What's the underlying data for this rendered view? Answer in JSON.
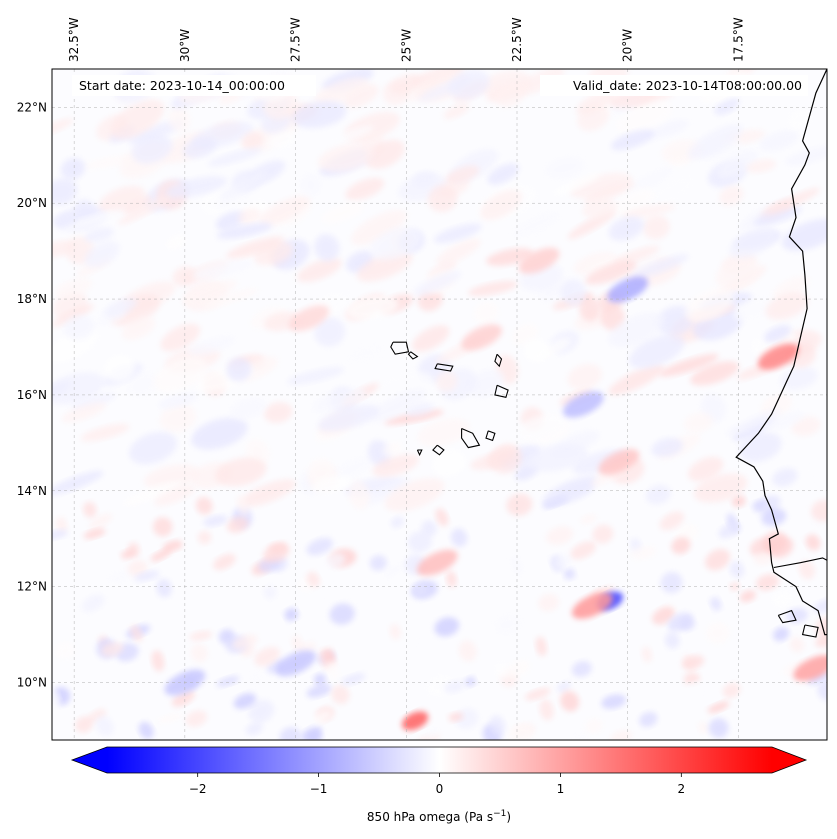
{
  "map": {
    "projection": "plate-carree",
    "extent": {
      "lon_min": -33.0,
      "lon_max": -15.5,
      "lat_min": 8.8,
      "lat_max": 22.8
    },
    "gridlines": "dashed",
    "start_label": "Start date: 2023-10-14_00:00:00",
    "valid_label": "Valid_date: 2023-10-14T08:00:00.00",
    "lon_ticks": [
      {
        "value": -32.5,
        "label": "32.5°W"
      },
      {
        "value": -30.0,
        "label": "30°W"
      },
      {
        "value": -27.5,
        "label": "27.5°W"
      },
      {
        "value": -25.0,
        "label": "25°W"
      },
      {
        "value": -22.5,
        "label": "22.5°W"
      },
      {
        "value": -20.0,
        "label": "20°W"
      },
      {
        "value": -17.5,
        "label": "17.5°W"
      }
    ],
    "lat_ticks": [
      {
        "value": 22,
        "label": "22°N"
      },
      {
        "value": 20,
        "label": "20°N"
      },
      {
        "value": 18,
        "label": "18°N"
      },
      {
        "value": 16,
        "label": "16°N"
      },
      {
        "value": 14,
        "label": "14°N"
      },
      {
        "value": 12,
        "label": "12°N"
      },
      {
        "value": 10,
        "label": "10°N"
      }
    ]
  },
  "colorbar": {
    "label": "850 hPa omega (Pa s",
    "label_sup": "−1",
    "label_close": ")",
    "vmin": -2.75,
    "vmax": 2.75,
    "extend": "both",
    "colormap": "bwr",
    "color_low": "#0000ff",
    "color_mid": "#ffffff",
    "color_high": "#ff0000",
    "ticks": [
      {
        "value": -2,
        "label": "−2"
      },
      {
        "value": -1,
        "label": "−1"
      },
      {
        "value": 0,
        "label": "0"
      },
      {
        "value": 1,
        "label": "1"
      },
      {
        "value": 2,
        "label": "2"
      }
    ]
  },
  "field_features": [
    {
      "lon": -23.3,
      "lat": 17.2,
      "value": 0.5
    },
    {
      "lon": -20.0,
      "lat": 18.2,
      "value": -0.9
    },
    {
      "lon": -24.8,
      "lat": 9.2,
      "value": 1.7
    },
    {
      "lon": -20.4,
      "lat": 11.7,
      "value": -2.0
    },
    {
      "lon": -20.8,
      "lat": 11.6,
      "value": 1.1
    },
    {
      "lon": -16.6,
      "lat": 16.8,
      "value": 1.3
    },
    {
      "lon": -15.8,
      "lat": 10.3,
      "value": 1.0
    },
    {
      "lon": -21.0,
      "lat": 15.8,
      "value": -0.7
    },
    {
      "lon": -30.0,
      "lat": 10.0,
      "value": -0.6
    },
    {
      "lon": -27.5,
      "lat": 10.4,
      "value": -0.6
    },
    {
      "lon": -20.2,
      "lat": 14.6,
      "value": 0.6
    },
    {
      "lon": -22.0,
      "lat": 18.8,
      "value": 0.5
    },
    {
      "lon": -27.2,
      "lat": 17.6,
      "value": 0.4
    },
    {
      "lon": -24.3,
      "lat": 12.5,
      "value": 0.7
    }
  ],
  "coastlines": {
    "africa": [
      [
        -15.5,
        22.8
      ],
      [
        -15.75,
        22.3
      ],
      [
        -16.05,
        21.3
      ],
      [
        -15.9,
        21.05
      ],
      [
        -16.0,
        20.8
      ],
      [
        -16.3,
        20.3
      ],
      [
        -16.2,
        19.7
      ],
      [
        -16.35,
        19.3
      ],
      [
        -16.05,
        19.0
      ],
      [
        -16.0,
        18.5
      ],
      [
        -15.95,
        17.8
      ],
      [
        -16.1,
        17.2
      ],
      [
        -16.25,
        16.6
      ],
      [
        -16.4,
        16.3
      ],
      [
        -16.55,
        16.0
      ],
      [
        -16.75,
        15.6
      ],
      [
        -17.05,
        15.2
      ],
      [
        -17.35,
        14.9
      ],
      [
        -17.55,
        14.7
      ],
      [
        -17.15,
        14.5
      ],
      [
        -16.95,
        14.2
      ],
      [
        -16.9,
        13.9
      ],
      [
        -16.75,
        13.6
      ],
      [
        -16.6,
        13.1
      ],
      [
        -16.8,
        13.0
      ],
      [
        -16.75,
        12.5
      ],
      [
        -16.7,
        12.3
      ],
      [
        -16.2,
        12.0
      ],
      [
        -16.05,
        11.7
      ],
      [
        -15.7,
        11.5
      ],
      [
        -15.55,
        11.0
      ],
      [
        -15.5,
        11.0
      ]
    ],
    "islands": [
      [
        [
          -25.3,
          17.1
        ],
        [
          -25.0,
          17.1
        ],
        [
          -24.95,
          16.9
        ],
        [
          -25.25,
          16.85
        ],
        [
          -25.35,
          17.0
        ],
        [
          -25.3,
          17.1
        ]
      ],
      [
        [
          -24.9,
          16.9
        ],
        [
          -24.75,
          16.8
        ],
        [
          -24.85,
          16.75
        ],
        [
          -24.95,
          16.85
        ],
        [
          -24.9,
          16.9
        ]
      ],
      [
        [
          -24.3,
          16.65
        ],
        [
          -23.95,
          16.6
        ],
        [
          -24.0,
          16.5
        ],
        [
          -24.35,
          16.55
        ],
        [
          -24.3,
          16.65
        ]
      ],
      [
        [
          -22.95,
          16.85
        ],
        [
          -22.85,
          16.75
        ],
        [
          -22.9,
          16.6
        ],
        [
          -23.0,
          16.7
        ],
        [
          -22.95,
          16.85
        ]
      ],
      [
        [
          -22.95,
          16.2
        ],
        [
          -22.7,
          16.1
        ],
        [
          -22.75,
          15.95
        ],
        [
          -23.0,
          16.0
        ],
        [
          -22.95,
          16.2
        ]
      ],
      [
        [
          -23.75,
          15.3
        ],
        [
          -23.5,
          15.2
        ],
        [
          -23.35,
          14.95
        ],
        [
          -23.6,
          14.9
        ],
        [
          -23.75,
          15.1
        ],
        [
          -23.75,
          15.3
        ]
      ],
      [
        [
          -24.3,
          14.95
        ],
        [
          -24.15,
          14.85
        ],
        [
          -24.25,
          14.75
        ],
        [
          -24.4,
          14.85
        ],
        [
          -24.3,
          14.95
        ]
      ],
      [
        [
          -23.15,
          15.25
        ],
        [
          -23.0,
          15.2
        ],
        [
          -23.05,
          15.05
        ],
        [
          -23.2,
          15.1
        ],
        [
          -23.15,
          15.25
        ]
      ],
      [
        [
          -24.75,
          14.85
        ],
        [
          -24.65,
          14.85
        ],
        [
          -24.7,
          14.75
        ],
        [
          -24.75,
          14.85
        ]
      ],
      [
        [
          -16.7,
          12.4
        ],
        [
          -16.1,
          12.5
        ],
        [
          -15.6,
          12.6
        ],
        [
          -15.5,
          12.55
        ]
      ],
      [
        [
          -16.6,
          11.4
        ],
        [
          -16.3,
          11.5
        ],
        [
          -16.2,
          11.3
        ],
        [
          -16.5,
          11.25
        ],
        [
          -16.6,
          11.4
        ]
      ],
      [
        [
          -16.0,
          11.2
        ],
        [
          -15.7,
          11.15
        ],
        [
          -15.75,
          10.95
        ],
        [
          -16.05,
          11.0
        ],
        [
          -16.0,
          11.2
        ]
      ]
    ]
  }
}
